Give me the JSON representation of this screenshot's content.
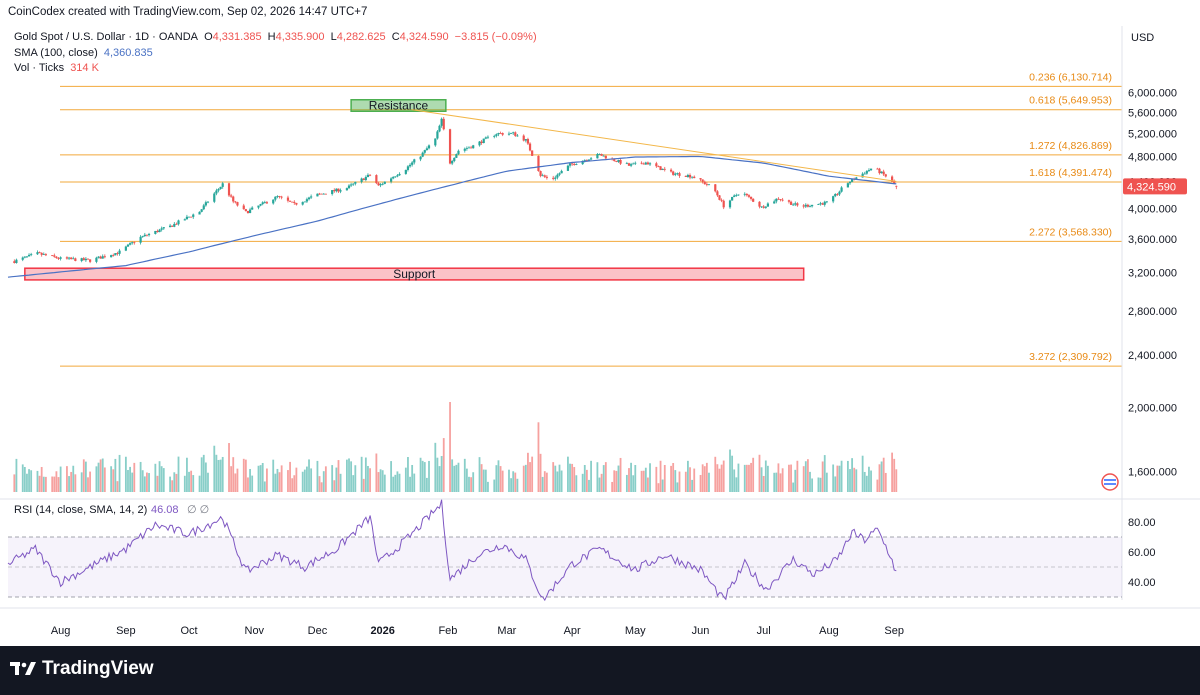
{
  "header": {
    "credit": "CoinCodex created with TradingView.com, Sep 02, 2026 14:47 UTC+7",
    "symbol": "Gold Spot / U.S. Dollar · 1D · OANDA",
    "open_label": "O",
    "open": "4,331.385",
    "high_label": "H",
    "high": "4,335.900",
    "low_label": "L",
    "low": "4,282.625",
    "close_label": "C",
    "close": "4,324.590",
    "change": "−3.815 (−0.09%)",
    "sma_label": "SMA (100, close)",
    "sma_value": "4,360.835",
    "vol_label": "Vol · Ticks",
    "vol_value": "314 K",
    "currency": "USD"
  },
  "colors": {
    "up": "#26a69a",
    "down": "#ef5350",
    "sma": "#4a72c4",
    "fib": "#f2a93b",
    "trendline": "#f3b74a",
    "rsi": "#7e57c2",
    "resistance": "#4caf50",
    "support": "#f23645"
  },
  "chart_data": [
    {
      "type": "candlestick",
      "title": "Gold Spot / U.S. Dollar · 1D · OANDA",
      "ylabel": "USD",
      "y_scale": "log",
      "ylim": [
        1450,
        7100
      ],
      "y_ticks": [
        "6,000.000",
        "5,600.000",
        "5,200.000",
        "4,800.000",
        "4,400.000",
        "4,000.000",
        "3,600.000",
        "3,200.000",
        "2,800.000",
        "2,400.000",
        "2,000.000",
        "1,600.000"
      ],
      "x_ticks": [
        "Aug",
        "Sep",
        "Oct",
        "Nov",
        "Dec",
        "2026",
        "Feb",
        "Mar",
        "Apr",
        "May",
        "Jun",
        "Jul",
        "Aug",
        "Sep"
      ],
      "last_price_label": "4,324.590",
      "close_series": {
        "anchors": [
          {
            "date": "2025-07-10",
            "value": 3330
          },
          {
            "date": "2025-07-21",
            "value": 3420
          },
          {
            "date": "2025-08-01",
            "value": 3360
          },
          {
            "date": "2025-08-15",
            "value": 3340
          },
          {
            "date": "2025-08-29",
            "value": 3440
          },
          {
            "date": "2025-09-08",
            "value": 3620
          },
          {
            "date": "2025-09-22",
            "value": 3760
          },
          {
            "date": "2025-10-06",
            "value": 3960
          },
          {
            "date": "2025-10-17",
            "value": 4360
          },
          {
            "date": "2025-10-22",
            "value": 4100
          },
          {
            "date": "2025-10-28",
            "value": 3950
          },
          {
            "date": "2025-11-12",
            "value": 4170
          },
          {
            "date": "2025-11-20",
            "value": 4060
          },
          {
            "date": "2025-12-01",
            "value": 4200
          },
          {
            "date": "2025-12-15",
            "value": 4300
          },
          {
            "date": "2025-12-26",
            "value": 4500
          },
          {
            "date": "2025-12-30",
            "value": 4330
          },
          {
            "date": "2026-01-12",
            "value": 4600
          },
          {
            "date": "2026-01-20",
            "value": 4850
          },
          {
            "date": "2026-01-26",
            "value": 5100
          },
          {
            "date": "2026-01-29",
            "value": 5450
          },
          {
            "date": "2026-02-02",
            "value": 4700
          },
          {
            "date": "2026-02-06",
            "value": 4900
          },
          {
            "date": "2026-02-13",
            "value": 4980
          },
          {
            "date": "2026-02-24",
            "value": 5200
          },
          {
            "date": "2026-03-04",
            "value": 5200
          },
          {
            "date": "2026-03-10",
            "value": 5080
          },
          {
            "date": "2026-03-17",
            "value": 4500
          },
          {
            "date": "2026-03-22",
            "value": 4420
          },
          {
            "date": "2026-03-31",
            "value": 4660
          },
          {
            "date": "2026-04-14",
            "value": 4830
          },
          {
            "date": "2026-04-28",
            "value": 4650
          },
          {
            "date": "2026-05-06",
            "value": 4700
          },
          {
            "date": "2026-05-18",
            "value": 4530
          },
          {
            "date": "2026-05-28",
            "value": 4480
          },
          {
            "date": "2026-06-07",
            "value": 4300
          },
          {
            "date": "2026-06-12",
            "value": 4040
          },
          {
            "date": "2026-06-20",
            "value": 4250
          },
          {
            "date": "2026-06-30",
            "value": 4020
          },
          {
            "date": "2026-07-08",
            "value": 4150
          },
          {
            "date": "2026-07-18",
            "value": 4030
          },
          {
            "date": "2026-08-01",
            "value": 4090
          },
          {
            "date": "2026-08-10",
            "value": 4380
          },
          {
            "date": "2026-08-22",
            "value": 4620
          },
          {
            "date": "2026-08-28",
            "value": 4480
          },
          {
            "date": "2026-09-02",
            "value": 4324.59
          }
        ]
      },
      "sma": {
        "name": "SMA (100, close)",
        "anchors": [
          {
            "date": "2025-07-07",
            "value": 3150
          },
          {
            "date": "2025-09-01",
            "value": 3280
          },
          {
            "date": "2025-10-01",
            "value": 3440
          },
          {
            "date": "2025-11-01",
            "value": 3640
          },
          {
            "date": "2025-12-01",
            "value": 3830
          },
          {
            "date": "2026-01-01",
            "value": 4080
          },
          {
            "date": "2026-02-01",
            "value": 4330
          },
          {
            "date": "2026-03-01",
            "value": 4560
          },
          {
            "date": "2026-04-01",
            "value": 4700
          },
          {
            "date": "2026-05-01",
            "value": 4790
          },
          {
            "date": "2026-06-01",
            "value": 4800
          },
          {
            "date": "2026-07-01",
            "value": 4690
          },
          {
            "date": "2026-08-01",
            "value": 4480
          },
          {
            "date": "2026-09-02",
            "value": 4360.835
          }
        ]
      },
      "fib_levels": [
        {
          "label": "0.236 (6,130.714)",
          "value": 6130.714
        },
        {
          "label": "0.618 (5,649.953)",
          "value": 5649.953
        },
        {
          "label": "1.272 (4,826.869)",
          "value": 4826.869
        },
        {
          "label": "1.618 (4,391.474)",
          "value": 4391.474
        },
        {
          "label": "2.272 (3,568.330)",
          "value": 3568.33
        },
        {
          "label": "3.272 (2,309.792)",
          "value": 2309.792
        }
      ],
      "zones": [
        {
          "label": "Resistance",
          "y_low": 5620,
          "y_high": 5850,
          "x_start": "2025-12-17",
          "x_end": "2026-01-31"
        },
        {
          "label": "Support",
          "y_low": 3120,
          "y_high": 3250,
          "x_start": "2025-07-15",
          "x_end": "2026-07-20"
        }
      ],
      "trendline": {
        "from": {
          "date": "2026-01-15",
          "value": 5650
        },
        "to": {
          "date": "2026-09-02",
          "value": 4400
        }
      },
      "volume": {
        "name": "Vol · Ticks",
        "last": "314 K"
      }
    },
    {
      "type": "line",
      "title": "RSI (14, close, SMA, 14, 2)",
      "name": "RSI (14, close, SMA, 14, 2)",
      "value": "46.08",
      "ylim": [
        20,
        95
      ],
      "y_ticks": [
        "80.00",
        "60.00",
        "40.00"
      ],
      "bands": [
        70,
        30
      ],
      "anchors": [
        {
          "date": "2025-07-07",
          "value": 52
        },
        {
          "date": "2025-07-20",
          "value": 62
        },
        {
          "date": "2025-08-01",
          "value": 40
        },
        {
          "date": "2025-08-15",
          "value": 50
        },
        {
          "date": "2025-09-01",
          "value": 62
        },
        {
          "date": "2025-09-15",
          "value": 78
        },
        {
          "date": "2025-10-01",
          "value": 72
        },
        {
          "date": "2025-10-17",
          "value": 83
        },
        {
          "date": "2025-10-28",
          "value": 47
        },
        {
          "date": "2025-11-12",
          "value": 58
        },
        {
          "date": "2025-11-25",
          "value": 50
        },
        {
          "date": "2025-12-10",
          "value": 62
        },
        {
          "date": "2025-12-26",
          "value": 83
        },
        {
          "date": "2025-12-30",
          "value": 52
        },
        {
          "date": "2026-01-12",
          "value": 68
        },
        {
          "date": "2026-01-29",
          "value": 92
        },
        {
          "date": "2026-02-02",
          "value": 42
        },
        {
          "date": "2026-02-15",
          "value": 58
        },
        {
          "date": "2026-02-27",
          "value": 65
        },
        {
          "date": "2026-03-10",
          "value": 55
        },
        {
          "date": "2026-03-18",
          "value": 28
        },
        {
          "date": "2026-04-01",
          "value": 52
        },
        {
          "date": "2026-04-14",
          "value": 62
        },
        {
          "date": "2026-05-01",
          "value": 48
        },
        {
          "date": "2026-05-15",
          "value": 58
        },
        {
          "date": "2026-06-01",
          "value": 48
        },
        {
          "date": "2026-06-12",
          "value": 28
        },
        {
          "date": "2026-06-22",
          "value": 52
        },
        {
          "date": "2026-07-02",
          "value": 35
        },
        {
          "date": "2026-07-15",
          "value": 55
        },
        {
          "date": "2026-07-25",
          "value": 45
        },
        {
          "date": "2026-08-05",
          "value": 55
        },
        {
          "date": "2026-08-12",
          "value": 73
        },
        {
          "date": "2026-08-18",
          "value": 68
        },
        {
          "date": "2026-08-24",
          "value": 75
        },
        {
          "date": "2026-08-30",
          "value": 58
        },
        {
          "date": "2026-09-02",
          "value": 46.08
        }
      ]
    }
  ],
  "footer": {
    "brand": "TradingView"
  }
}
